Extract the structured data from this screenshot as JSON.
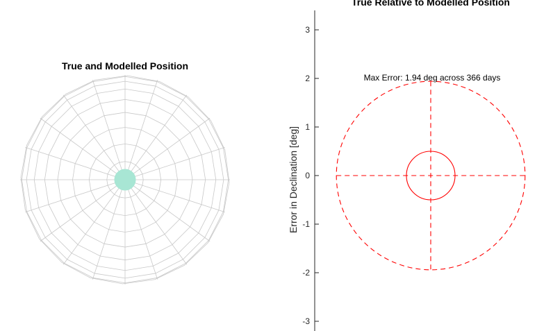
{
  "chart_data": [
    {
      "type": "polar-sphere",
      "title": "True and Modelled Position",
      "grid": true,
      "colors": {
        "grid": "#c8c8c8",
        "marker": "#a8e6d4"
      }
    },
    {
      "type": "line",
      "title": "True Relative to Modelled Position",
      "xlabel": "",
      "ylabel": "Error in Declination [deg]",
      "ylim": [
        -3.2,
        3.4
      ],
      "xlim": [
        -2.0,
        2.0
      ],
      "yticks": [
        3,
        2,
        1,
        0,
        -1,
        -2,
        -3
      ],
      "ytick_labels": [
        "3",
        "2",
        "1",
        "0",
        "-1",
        "-2",
        "-3"
      ],
      "annotation": "Max Error: 1.94 deg across 366 days",
      "colors": {
        "series": "#ff0000",
        "axis": "#262626"
      },
      "series": [
        {
          "style": "dashed",
          "shape": "circle",
          "radius": 1.94,
          "center": [
            0,
            0
          ]
        },
        {
          "style": "solid",
          "shape": "circle",
          "radius": 0.5,
          "center": [
            0,
            0
          ]
        },
        {
          "style": "dashed",
          "shape": "crosshair",
          "extent": 1.94
        }
      ]
    }
  ]
}
